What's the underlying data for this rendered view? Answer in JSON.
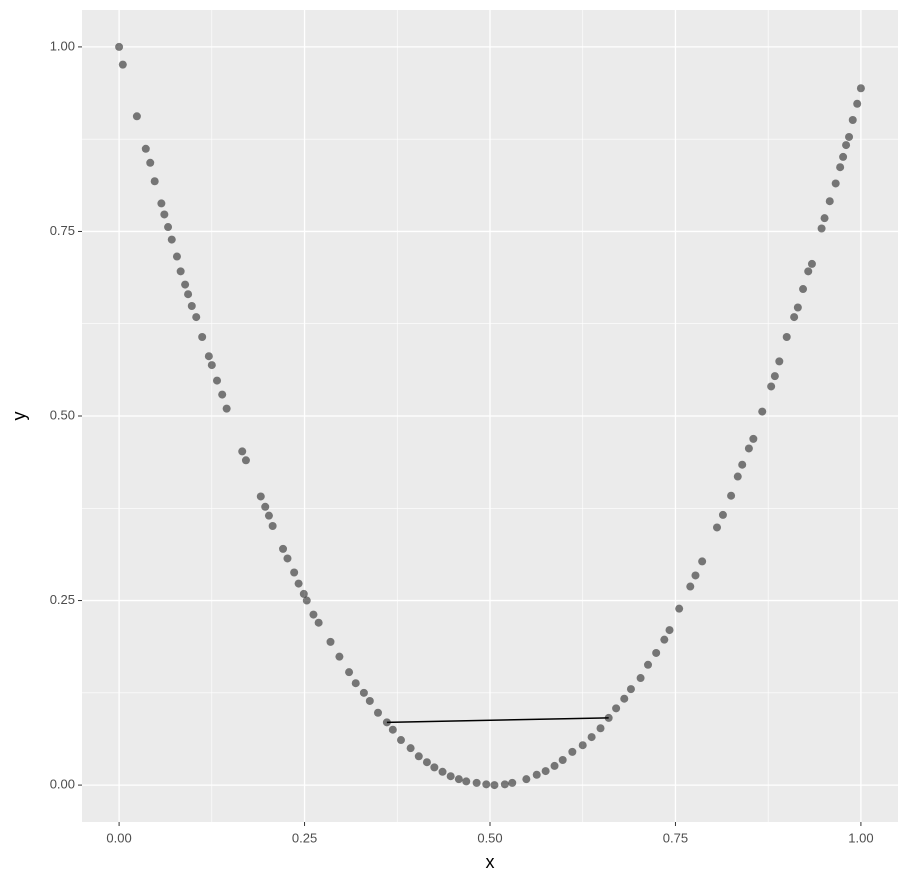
{
  "chart_data": {
    "type": "scatter",
    "x_label": "x",
    "y_label": "y",
    "x": [
      0,
      0.005,
      0.024,
      0.036,
      0.042,
      0.048,
      0.057,
      0.061,
      0.066,
      0.071,
      0.078,
      0.083,
      0.089,
      0.093,
      0.098,
      0.104,
      0.112,
      0.121,
      0.125,
      0.132,
      0.139,
      0.145,
      0.166,
      0.171,
      0.191,
      0.197,
      0.202,
      0.207,
      0.221,
      0.227,
      0.236,
      0.242,
      0.249,
      0.253,
      0.262,
      0.269,
      0.285,
      0.297,
      0.31,
      0.319,
      0.33,
      0.338,
      0.349,
      0.361,
      0.369,
      0.38,
      0.393,
      0.404,
      0.415,
      0.425,
      0.436,
      0.447,
      0.458,
      0.468,
      0.482,
      0.495,
      0.506,
      0.52,
      0.53,
      0.549,
      0.563,
      0.575,
      0.587,
      0.598,
      0.611,
      0.625,
      0.637,
      0.649,
      0.66,
      0.67,
      0.681,
      0.69,
      0.703,
      0.713,
      0.724,
      0.735,
      0.742,
      0.755,
      0.77,
      0.777,
      0.786,
      0.806,
      0.814,
      0.825,
      0.834,
      0.84,
      0.849,
      0.855,
      0.867,
      0.879,
      0.884,
      0.89,
      0.9,
      0.91,
      0.915,
      0.922,
      0.929,
      0.934,
      0.947,
      0.951,
      0.958,
      0.966,
      0.972,
      0.976,
      0.98,
      0.984,
      0.989,
      0.995,
      1.0
    ],
    "values": [
      1.0,
      0.976,
      0.906,
      0.862,
      0.843,
      0.818,
      0.788,
      0.773,
      0.756,
      0.739,
      0.716,
      0.696,
      0.678,
      0.665,
      0.649,
      0.634,
      0.607,
      0.581,
      0.569,
      0.548,
      0.529,
      0.51,
      0.452,
      0.44,
      0.391,
      0.377,
      0.365,
      0.351,
      0.32,
      0.307,
      0.288,
      0.273,
      0.259,
      0.25,
      0.231,
      0.22,
      0.194,
      0.174,
      0.153,
      0.138,
      0.125,
      0.114,
      0.098,
      0.085,
      0.075,
      0.061,
      0.05,
      0.039,
      0.031,
      0.024,
      0.018,
      0.012,
      0.008,
      0.005,
      0.003,
      0.001,
      0.0,
      0.001,
      0.003,
      0.008,
      0.014,
      0.019,
      0.026,
      0.034,
      0.045,
      0.054,
      0.065,
      0.077,
      0.091,
      0.104,
      0.117,
      0.13,
      0.145,
      0.163,
      0.179,
      0.197,
      0.21,
      0.239,
      0.269,
      0.284,
      0.303,
      0.349,
      0.366,
      0.392,
      0.418,
      0.434,
      0.456,
      0.469,
      0.506,
      0.54,
      0.554,
      0.574,
      0.607,
      0.634,
      0.647,
      0.672,
      0.696,
      0.706,
      0.754,
      0.768,
      0.791,
      0.815,
      0.837,
      0.851,
      0.867,
      0.878,
      0.901,
      0.923,
      0.944
    ],
    "color": "#000000",
    "line": {
      "x": [
        0.361,
        0.66
      ],
      "values": [
        0.085,
        0.091
      ],
      "color": "#000000"
    },
    "xlim": [
      -0.05,
      1.05
    ],
    "ylim": [
      -0.05,
      1.05
    ],
    "xticks": [
      {
        "value": 0,
        "label": "0.00"
      },
      {
        "value": 0.25,
        "label": "0.25"
      },
      {
        "value": 0.5,
        "label": "0.50"
      },
      {
        "value": 0.75,
        "label": "0.75"
      },
      {
        "value": 1,
        "label": "1.00"
      }
    ],
    "yticks": [
      {
        "value": 0,
        "label": "0.00"
      },
      {
        "value": 0.25,
        "label": "0.25"
      },
      {
        "value": 0.5,
        "label": "0.50"
      },
      {
        "value": 0.75,
        "label": "0.75"
      },
      {
        "value": 1,
        "label": "1.00"
      }
    ],
    "minor_xticks": [
      0.125,
      0.375,
      0.625,
      0.875
    ],
    "minor_yticks": [
      0.125,
      0.375,
      0.625,
      0.875
    ],
    "grid": true,
    "panel_color": "#ebebeb"
  }
}
